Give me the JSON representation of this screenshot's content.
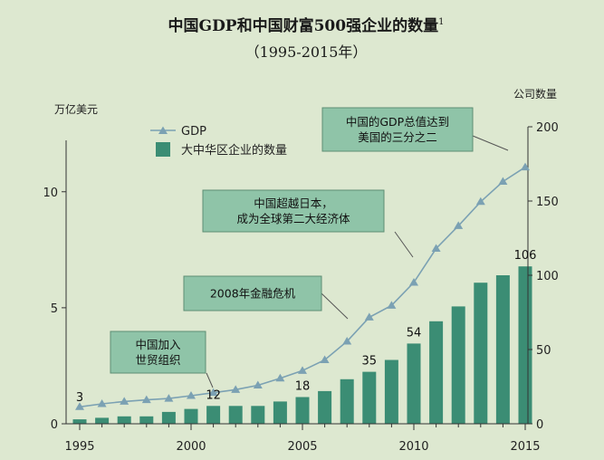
{
  "header": {
    "title": "中国GDP和中国财富500强企业的数量",
    "title_sup": "1",
    "subtitle": "（1995-2015年）"
  },
  "chart_data": {
    "type": "bar+line",
    "x": [
      1995,
      1996,
      1997,
      1998,
      1999,
      2000,
      2001,
      2002,
      2003,
      2004,
      2005,
      2006,
      2007,
      2008,
      2009,
      2010,
      2011,
      2012,
      2013,
      2014,
      2015
    ],
    "x_ticks": [
      "1995",
      "2000",
      "2005",
      "2010",
      "2015"
    ],
    "left_axis": {
      "label": "万亿美元",
      "ticks": [
        "0",
        "5",
        "10"
      ],
      "range": [
        0,
        12.8
      ]
    },
    "right_axis": {
      "label": "公司数量",
      "ticks": [
        "0",
        "50",
        "100",
        "150",
        "200"
      ],
      "range": [
        0,
        200
      ]
    },
    "series": [
      {
        "name": "GDP",
        "axis": "left",
        "kind": "line",
        "color": "#7ba1b3",
        "values": [
          0.73,
          0.86,
          0.96,
          1.03,
          1.09,
          1.21,
          1.34,
          1.47,
          1.66,
          1.96,
          2.29,
          2.75,
          3.55,
          4.59,
          5.1,
          6.09,
          7.55,
          8.53,
          9.57,
          10.44,
          11.06
        ]
      },
      {
        "name": "大中华区企业的数量",
        "axis": "right",
        "kind": "bar",
        "color": "#3b8d74",
        "values": [
          3,
          4,
          5,
          5,
          8,
          10,
          12,
          12,
          12,
          15,
          18,
          22,
          30,
          35,
          43,
          54,
          69,
          79,
          95,
          100,
          106
        ]
      }
    ],
    "data_labels": [
      {
        "index": 0,
        "text": "3"
      },
      {
        "index": 6,
        "text": "12"
      },
      {
        "index": 10,
        "text": "18"
      },
      {
        "index": 13,
        "text": "35"
      },
      {
        "index": 15,
        "text": "54"
      },
      {
        "index": 20,
        "text": "106"
      }
    ],
    "annotations": [
      {
        "id": "wto",
        "lines": [
          "中国加入",
          "世贸组织"
        ],
        "target_index": 6
      },
      {
        "id": "crisis",
        "lines": [
          "2008年金融危机"
        ],
        "target_index": 13
      },
      {
        "id": "japan",
        "lines": [
          "中国超越日本，",
          "成为全球第二大经济体"
        ],
        "target_index": 15
      },
      {
        "id": "us",
        "lines": [
          "中国的GDP总值达到",
          "美国的三分之二"
        ],
        "target_index": 20
      }
    ],
    "legend": {
      "placement": "top-left"
    },
    "grid": false
  },
  "colors": {
    "background": "#dde8d0",
    "bar": "#3b8d74",
    "line": "#7ba1b3",
    "annotation_fill": "#8fc4a8",
    "annotation_border": "#5e8e74"
  }
}
